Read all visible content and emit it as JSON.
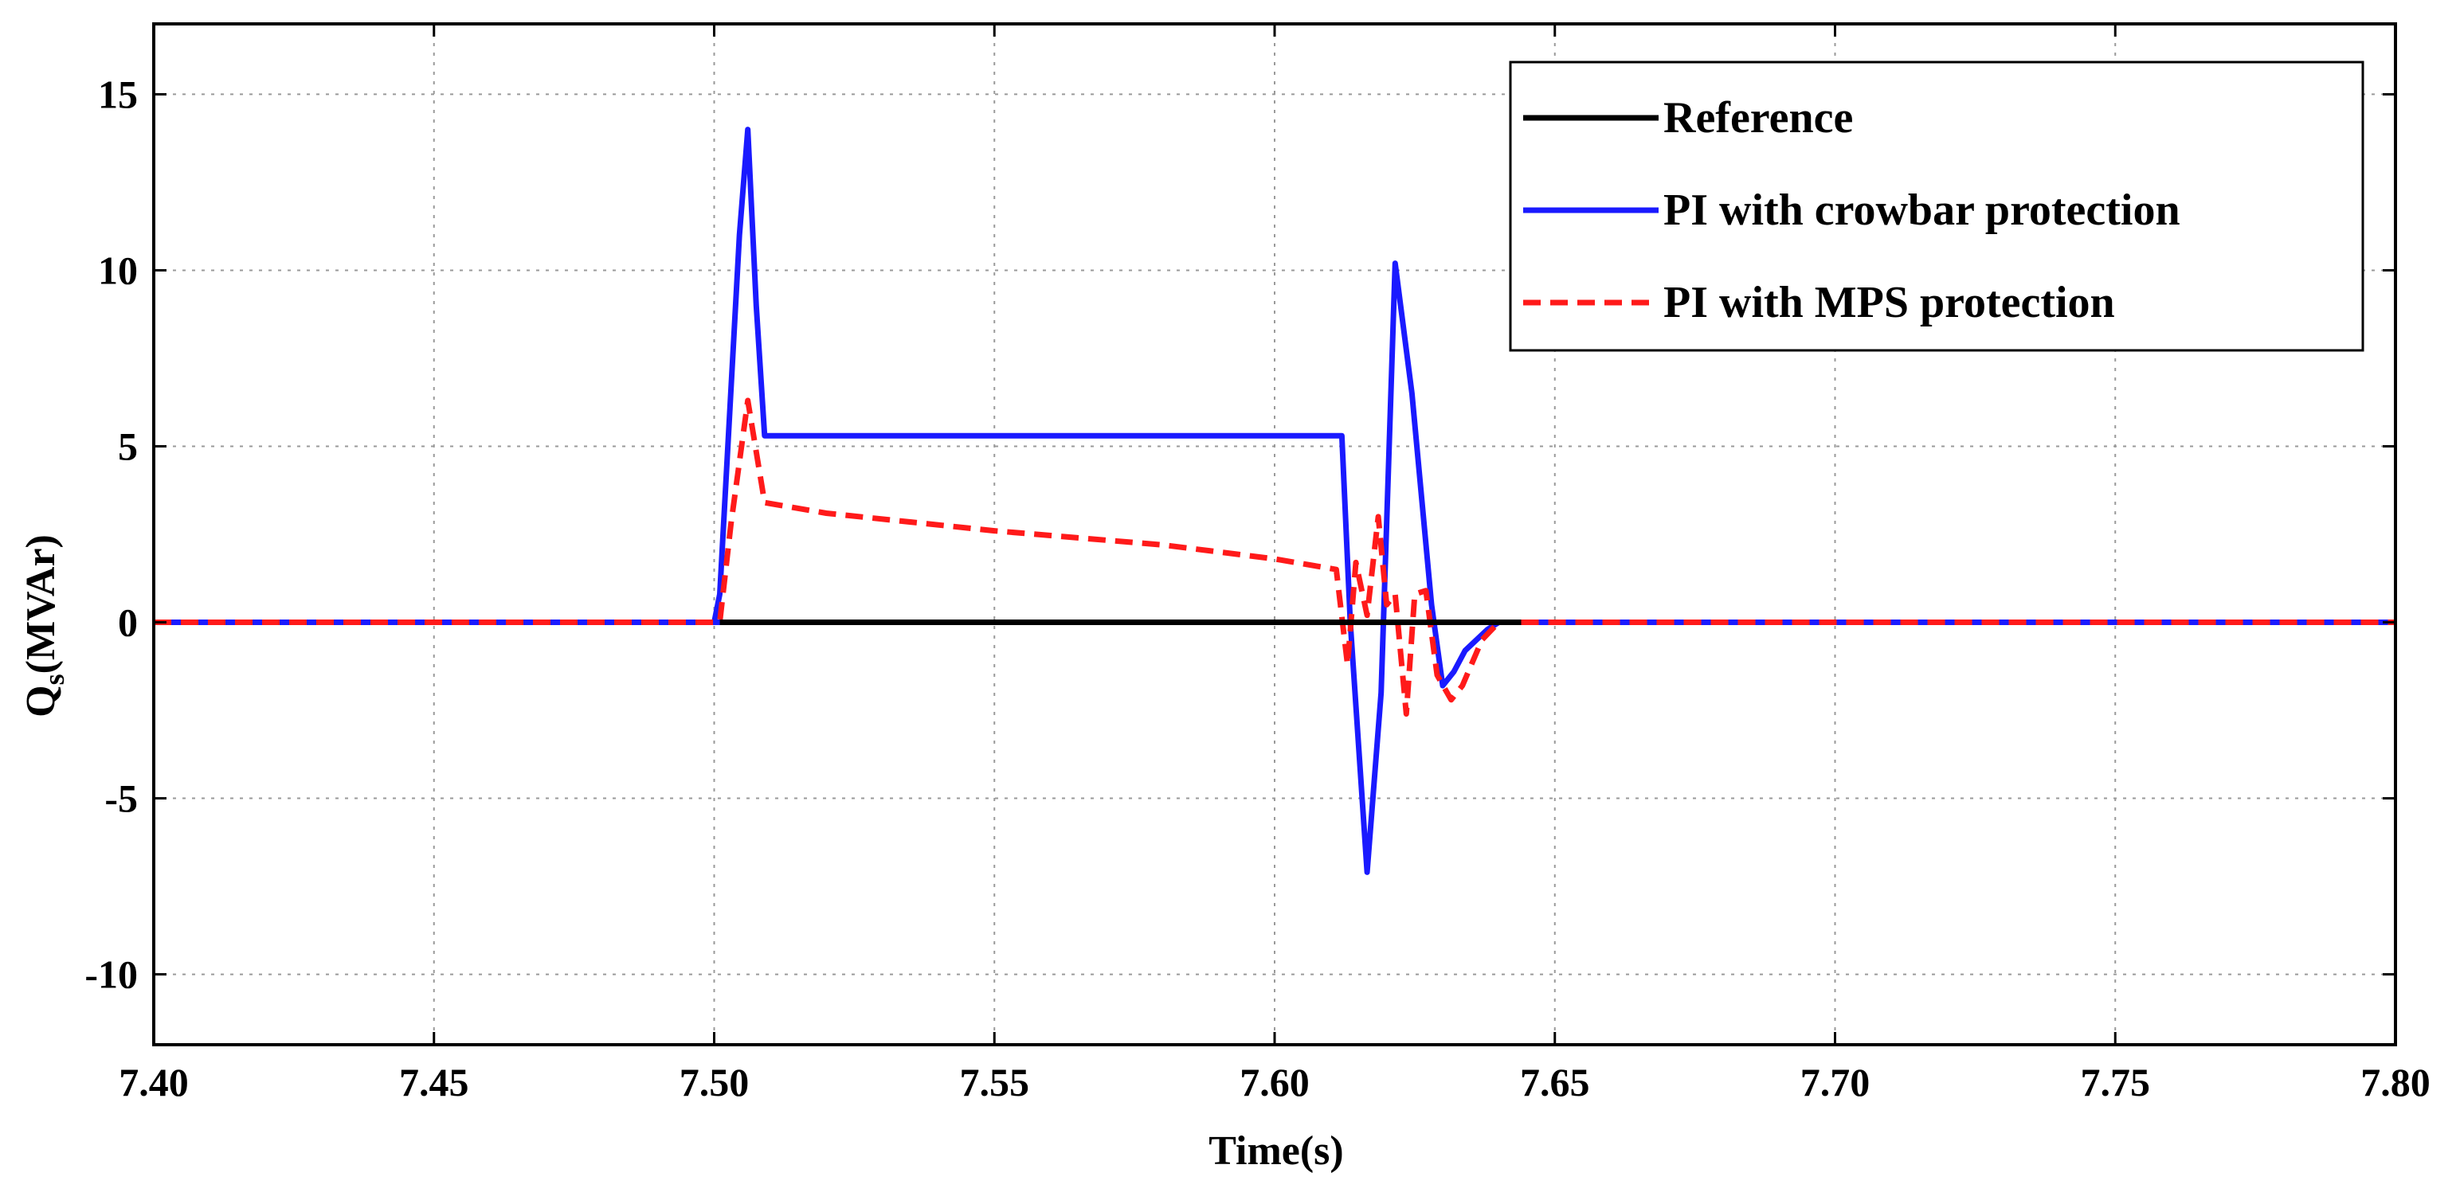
{
  "chart_data": {
    "type": "line",
    "title": "",
    "xlabel": "Time(s)",
    "ylabel": "Q",
    "ylabel_subscript": "s",
    "ylabel_unit": "(MVAr)",
    "xlim": [
      7.4,
      7.8
    ],
    "ylim": [
      -12,
      17
    ],
    "xticks": [
      7.4,
      7.45,
      7.5,
      7.55,
      7.6,
      7.65,
      7.7,
      7.75,
      7.8
    ],
    "xtick_labels": [
      "7.40",
      "7.45",
      "7.50",
      "7.55",
      "7.60",
      "7.65",
      "7.70",
      "7.75",
      "7.80"
    ],
    "yticks": [
      15,
      10,
      5,
      0,
      -5,
      -10
    ],
    "ytick_labels": [
      "15",
      "10",
      "5",
      "0",
      "-5",
      "-10"
    ],
    "grid": true,
    "legend_position": "top-right",
    "series": [
      {
        "name": "Reference",
        "color": "#000000",
        "style": "solid",
        "x": [
          7.4,
          7.8
        ],
        "y": [
          0,
          0
        ]
      },
      {
        "name": "PI with crowbar protection",
        "color": "#1a1aff",
        "style": "solid",
        "x": [
          7.4,
          7.5,
          7.501,
          7.5045,
          7.506,
          7.5075,
          7.509,
          7.612,
          7.6135,
          7.6165,
          7.619,
          7.6215,
          7.6245,
          7.628,
          7.63,
          7.632,
          7.634,
          7.638,
          7.64,
          7.8
        ],
        "y": [
          0,
          0,
          0.8,
          11.0,
          14.0,
          9.0,
          5.3,
          5.3,
          0,
          -7.1,
          -2.0,
          10.2,
          6.5,
          0.5,
          -1.8,
          -1.4,
          -0.8,
          -0.2,
          0,
          0
        ]
      },
      {
        "name": "PI with MPS protection",
        "color": "#ff1a1a",
        "style": "dashed",
        "x": [
          7.4,
          7.501,
          7.503,
          7.506,
          7.509,
          7.52,
          7.55,
          7.58,
          7.6,
          7.611,
          7.613,
          7.6145,
          7.6165,
          7.6185,
          7.62,
          7.6215,
          7.6235,
          7.625,
          7.627,
          7.629,
          7.6315,
          7.6335,
          7.637,
          7.64,
          7.644,
          7.8
        ],
        "y": [
          0,
          0,
          2.8,
          6.3,
          3.4,
          3.1,
          2.6,
          2.2,
          1.8,
          1.5,
          -1.2,
          1.7,
          0.2,
          3.0,
          0.5,
          0.8,
          -2.6,
          0.8,
          0.9,
          -1.5,
          -2.2,
          -1.8,
          -0.5,
          0,
          0,
          0
        ]
      }
    ]
  }
}
